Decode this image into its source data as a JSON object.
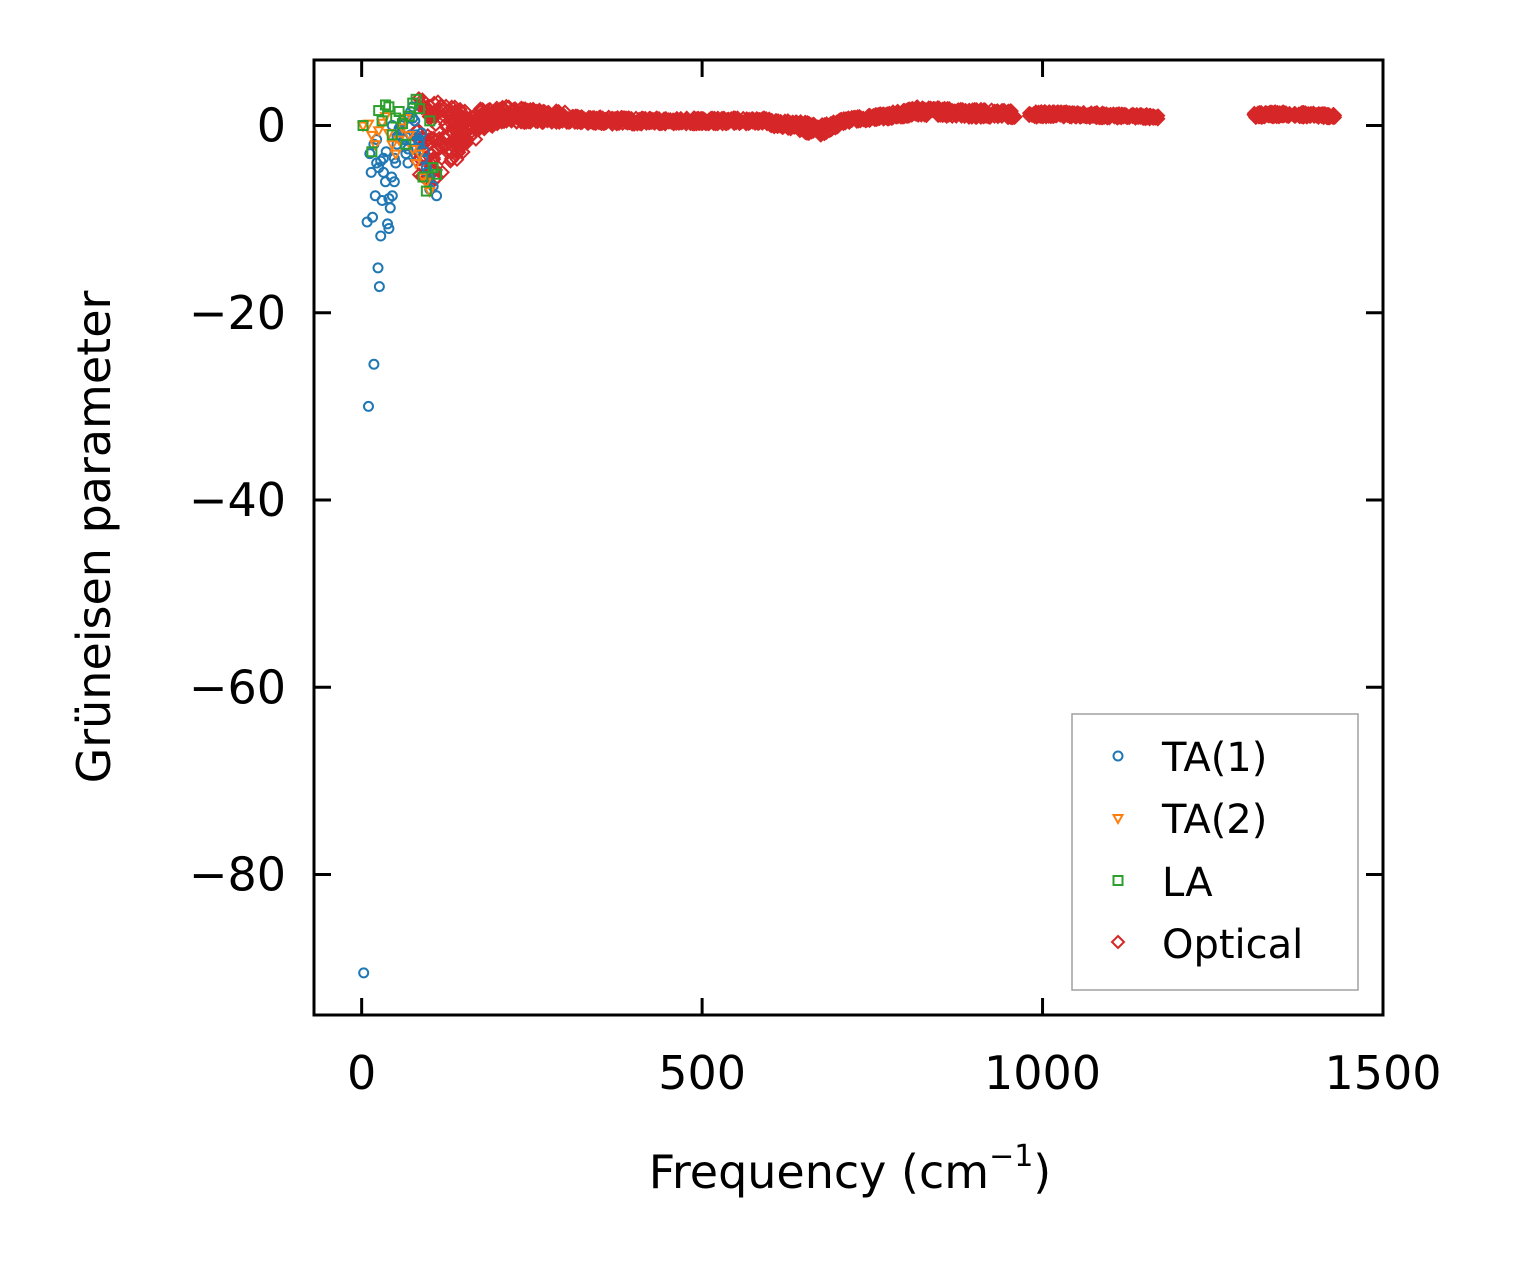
{
  "chart_data": {
    "type": "scatter",
    "title": "",
    "xlabel": "Frequency (cm",
    "xlabel_sup": "−1",
    "xlabel_close": ")",
    "ylabel": "Grüneisen parameter",
    "xlim": [
      -70,
      1500
    ],
    "ylim": [
      -95,
      7
    ],
    "xticks": [
      0,
      500,
      1000,
      1500
    ],
    "xtick_labels": [
      "0",
      "500",
      "1000",
      "1500"
    ],
    "yticks": [
      0,
      -20,
      -40,
      -60,
      -80
    ],
    "ytick_labels": [
      "0",
      "−20",
      "−40",
      "−60",
      "−80"
    ],
    "legend_position": "lower-right",
    "series": [
      {
        "name": "TA(1)",
        "marker": "circle",
        "color": "#1f77b4",
        "x": [
          3,
          8,
          10,
          12,
          14,
          16,
          18,
          20,
          22,
          24,
          26,
          28,
          30,
          32,
          35,
          38,
          40,
          42,
          45,
          48,
          50,
          52,
          55,
          58,
          60,
          62,
          65,
          68,
          70,
          72,
          75,
          78,
          80,
          85,
          90,
          95,
          100,
          105,
          110,
          18,
          22,
          25,
          28,
          32,
          36,
          40,
          44,
          48,
          52,
          56,
          60,
          64,
          68,
          72,
          76,
          80,
          84,
          88,
          92,
          96,
          100,
          45,
          55,
          65,
          75,
          85
        ],
        "y": [
          -90.5,
          -10.3,
          -30,
          -3,
          -5,
          -9.8,
          -25.5,
          -7.5,
          -4,
          -15.2,
          -17.2,
          -11.8,
          -8,
          -3.5,
          -6,
          -10.5,
          -11,
          -8.8,
          -7.5,
          -6,
          -4,
          -2,
          -1,
          0,
          0.5,
          -1.5,
          -3,
          -2.5,
          0.8,
          1.5,
          2,
          0.5,
          -1,
          -2,
          -3.5,
          -4.5,
          -5.5,
          -6.5,
          -7.5,
          -2,
          -1.5,
          -4.5,
          -3.8,
          -5,
          -2.8,
          -7.8,
          -5.5,
          -3.5,
          -1.2,
          -0.5,
          0.2,
          -2.2,
          -4,
          -1,
          -2.5,
          -3.2,
          -1.8,
          -0.8,
          -2.8,
          -5,
          -6.8,
          0,
          -0.3,
          -1.2,
          0.8,
          -1.5
        ]
      },
      {
        "name": "TA(2)",
        "marker": "triangle-down",
        "color": "#ff7f0e",
        "x": [
          2,
          10,
          15,
          20,
          25,
          30,
          35,
          40,
          45,
          50,
          55,
          60,
          65,
          70,
          75,
          80,
          85,
          90,
          95,
          100
        ],
        "y": [
          0,
          0.2,
          -1,
          -2,
          -0.5,
          0.3,
          1,
          -0.8,
          -2,
          -3,
          -1.5,
          -0.2,
          0.8,
          -1,
          -2.5,
          -4,
          -3,
          -5.5,
          -6,
          -7
        ]
      },
      {
        "name": "LA",
        "marker": "square",
        "color": "#2ca02c",
        "x": [
          2,
          15,
          25,
          30,
          35,
          40,
          45,
          50,
          55,
          60,
          65,
          70,
          75,
          80,
          85,
          90,
          95,
          100,
          105,
          110
        ],
        "y": [
          0,
          -2.8,
          1.6,
          0.5,
          2.2,
          2,
          -1,
          0.8,
          1.5,
          0.2,
          -2,
          1,
          2.4,
          2.8,
          1.8,
          -5.5,
          -7,
          0.5,
          -4.5,
          -5.2
        ]
      }
    ],
    "optical_band": {
      "name": "Optical",
      "marker": "diamond",
      "color": "#d62728",
      "segments": [
        {
          "from": 80,
          "to": 170,
          "center": [
            -2,
            -1.6,
            -1.2,
            -0.7,
            -0.2
          ],
          "spread": [
            5,
            4.5,
            3.6,
            2.4,
            1.2
          ]
        },
        {
          "from": 170,
          "to": 300,
          "center": [
            0.6,
            1.2,
            1.1,
            1,
            0.9
          ],
          "spread": [
            1.4,
            1.0,
            0.8,
            0.7,
            0.6
          ]
        },
        {
          "from": 300,
          "to": 600,
          "center": [
            0.7,
            0.5,
            0.5,
            0.5,
            0.5
          ],
          "spread": [
            0.4,
            0.4,
            0.35,
            0.35,
            0.35
          ]
        },
        {
          "from": 600,
          "to": 700,
          "center": [
            0.3,
            0.1,
            -0.2,
            -0.5,
            0.2
          ],
          "spread": [
            0.4,
            0.5,
            0.6,
            0.6,
            0.4
          ]
        },
        {
          "from": 700,
          "to": 820,
          "center": [
            0.4,
            0.7,
            0.9,
            1.2,
            1.6
          ],
          "spread": [
            0.3,
            0.3,
            0.35,
            0.4,
            0.5
          ]
        },
        {
          "from": 820,
          "to": 960,
          "center": [
            1.5,
            1.4,
            1.3,
            1.3,
            1.2
          ],
          "spread": [
            0.5,
            0.5,
            0.45,
            0.45,
            0.4
          ]
        },
        {
          "from": 980,
          "to": 1170,
          "center": [
            1.2,
            1.2,
            1.1,
            1.0,
            0.9
          ],
          "spread": [
            0.35,
            0.3,
            0.3,
            0.25,
            0.25
          ]
        },
        {
          "from": 1310,
          "to": 1430,
          "center": [
            1.1,
            1.2,
            1.2,
            1.1,
            1.0
          ],
          "spread": [
            0.3,
            0.3,
            0.3,
            0.25,
            0.25
          ]
        }
      ]
    },
    "legend": [
      {
        "label": "TA(1)",
        "marker": "circle",
        "color": "#1f77b4"
      },
      {
        "label": "TA(2)",
        "marker": "triangle-down",
        "color": "#ff7f0e"
      },
      {
        "label": "LA",
        "marker": "square",
        "color": "#2ca02c"
      },
      {
        "label": "Optical",
        "marker": "diamond",
        "color": "#d62728"
      }
    ]
  }
}
